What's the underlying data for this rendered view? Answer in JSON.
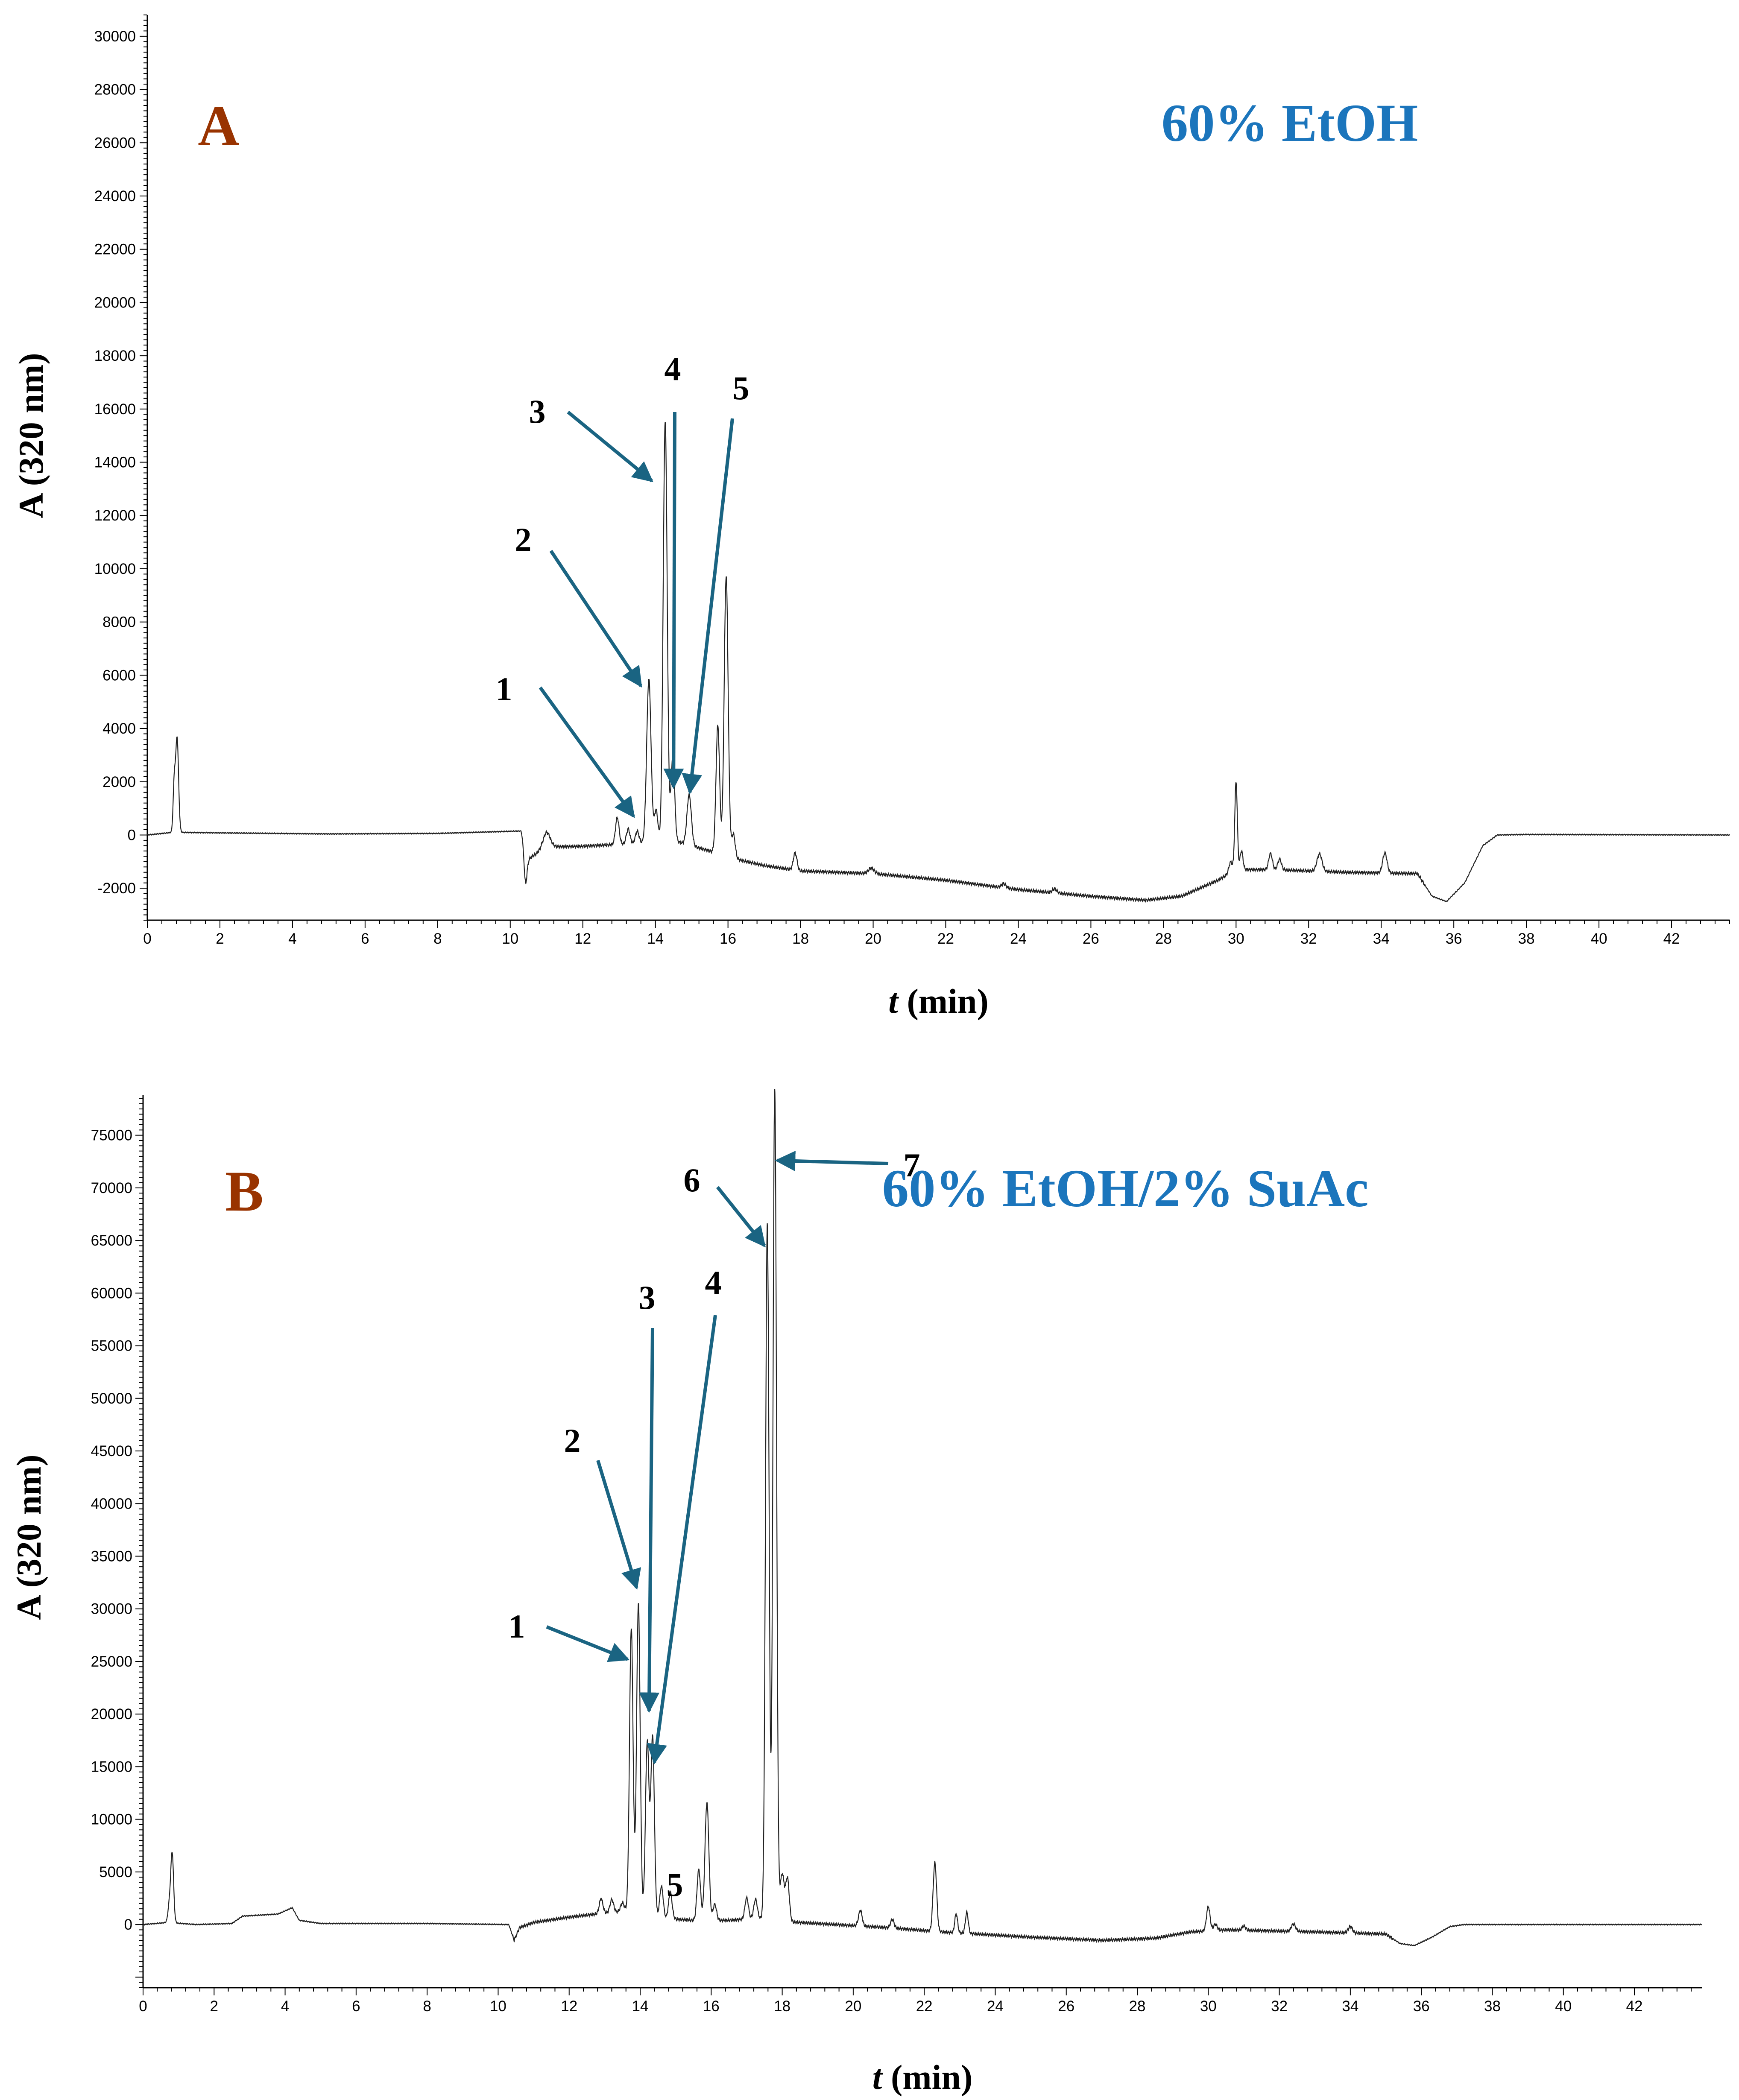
{
  "colors": {
    "letter": "#993300",
    "condition": "#1B75BC",
    "arrow": "#1A6482",
    "trace": "#222222",
    "axis": "#000000"
  },
  "chart_data": [
    {
      "type": "line",
      "panel": "A",
      "condition": "60% EtOH",
      "xlabel_italic": "t",
      "xlabel_rest": " (min)",
      "ylabel": "A (320 nm)",
      "xlim": [
        0,
        43.6
      ],
      "ylim": [
        -3200,
        30800
      ],
      "xticks": [
        0,
        2,
        4,
        6,
        8,
        10,
        12,
        14,
        16,
        18,
        20,
        22,
        24,
        26,
        28,
        30,
        32,
        34,
        36,
        38,
        40,
        42
      ],
      "yticks": [
        -2000,
        0,
        2000,
        4000,
        6000,
        8000,
        10000,
        12000,
        14000,
        16000,
        18000,
        20000,
        22000,
        24000,
        26000,
        28000,
        30000
      ],
      "baseline": [
        [
          0,
          0
        ],
        [
          0.7,
          100
        ],
        [
          2,
          80
        ],
        [
          5,
          40
        ],
        [
          8,
          60
        ],
        [
          10.3,
          150
        ],
        [
          10.5,
          -900
        ],
        [
          11,
          -450
        ],
        [
          12,
          -420
        ],
        [
          13,
          -350
        ],
        [
          13.6,
          -300
        ],
        [
          14.6,
          -250
        ],
        [
          15.5,
          -600
        ],
        [
          16.2,
          -900
        ],
        [
          17,
          -1150
        ],
        [
          18,
          -1350
        ],
        [
          20,
          -1450
        ],
        [
          22,
          -1700
        ],
        [
          24,
          -2050
        ],
        [
          26,
          -2300
        ],
        [
          27.5,
          -2450
        ],
        [
          28.5,
          -2300
        ],
        [
          29.5,
          -1700
        ],
        [
          30,
          -1300
        ],
        [
          31,
          -1300
        ],
        [
          33,
          -1400
        ],
        [
          35,
          -1450
        ],
        [
          35.4,
          -2300
        ],
        [
          35.8,
          -2500
        ],
        [
          36.3,
          -1800
        ],
        [
          36.8,
          -400
        ],
        [
          37.2,
          0
        ],
        [
          38,
          20
        ],
        [
          43.6,
          0
        ]
      ],
      "peaks": [
        [
          0.82,
          3550,
          0.04
        ],
        [
          0.74,
          1750,
          0.03
        ],
        [
          10.42,
          -1300,
          0.04
        ],
        [
          11.0,
          550,
          0.1
        ],
        [
          12.95,
          1000,
          0.05
        ],
        [
          13.25,
          550,
          0.05
        ],
        [
          13.5,
          450,
          0.05
        ],
        [
          13.82,
          6150,
          0.06
        ],
        [
          14.02,
          1200,
          0.05
        ],
        [
          14.27,
          15800,
          0.055
        ],
        [
          14.48,
          3200,
          0.05
        ],
        [
          14.93,
          1900,
          0.06
        ],
        [
          15.72,
          4800,
          0.05
        ],
        [
          15.95,
          10500,
          0.055
        ],
        [
          16.15,
          900,
          0.05
        ],
        [
          17.85,
          650,
          0.05
        ],
        [
          19.95,
          200,
          0.08
        ],
        [
          23.6,
          150,
          0.06
        ],
        [
          25.0,
          150,
          0.06
        ],
        [
          29.85,
          400,
          0.05
        ],
        [
          30.0,
          3300,
          0.035
        ],
        [
          30.15,
          700,
          0.04
        ],
        [
          30.95,
          600,
          0.05
        ],
        [
          31.2,
          400,
          0.05
        ],
        [
          32.3,
          650,
          0.07
        ],
        [
          34.1,
          750,
          0.06
        ]
      ],
      "annotations": [
        {
          "label": "1",
          "at": [
            13.4,
            700
          ]
        },
        {
          "label": "2",
          "at": [
            13.6,
            5600
          ]
        },
        {
          "label": "3",
          "at": [
            13.9,
            13300
          ]
        },
        {
          "label": "4",
          "at": [
            14.5,
            1800
          ]
        },
        {
          "label": "5",
          "at": [
            14.95,
            1600
          ]
        }
      ]
    },
    {
      "type": "line",
      "panel": "B",
      "condition": "60% EtOH/2% SuAc",
      "xlabel_italic": "t",
      "xlabel_rest": " (min)",
      "ylabel": "A (320 nm)",
      "xlim": [
        0,
        43.9
      ],
      "ylim": [
        -6000,
        78800
      ],
      "xticks": [
        0,
        2,
        4,
        6,
        8,
        10,
        12,
        14,
        16,
        18,
        20,
        22,
        24,
        26,
        28,
        30,
        32,
        34,
        36,
        38,
        40,
        42
      ],
      "yticks": [
        0,
        5000,
        10000,
        15000,
        20000,
        25000,
        30000,
        35000,
        40000,
        45000,
        50000,
        55000,
        60000,
        65000,
        70000,
        75000
      ],
      "baseline": [
        [
          0,
          0
        ],
        [
          0.7,
          200
        ],
        [
          1.5,
          0
        ],
        [
          2.5,
          100
        ],
        [
          2.8,
          800
        ],
        [
          3.8,
          1000
        ],
        [
          4.2,
          1600
        ],
        [
          4.4,
          400
        ],
        [
          5,
          100
        ],
        [
          8,
          100
        ],
        [
          10.3,
          0
        ],
        [
          10.45,
          -1500
        ],
        [
          10.6,
          -300
        ],
        [
          11,
          200
        ],
        [
          12,
          700
        ],
        [
          13,
          1100
        ],
        [
          13.6,
          1300
        ],
        [
          14.6,
          600
        ],
        [
          15.5,
          400
        ],
        [
          16.5,
          400
        ],
        [
          17.3,
          600
        ],
        [
          18,
          300
        ],
        [
          19,
          100
        ],
        [
          21,
          -300
        ],
        [
          22.5,
          -700
        ],
        [
          24,
          -1000
        ],
        [
          25,
          -1200
        ],
        [
          27,
          -1500
        ],
        [
          28.5,
          -1300
        ],
        [
          29.5,
          -700
        ],
        [
          30.5,
          -500
        ],
        [
          33,
          -700
        ],
        [
          35,
          -900
        ],
        [
          35.4,
          -1800
        ],
        [
          35.8,
          -2000
        ],
        [
          36.3,
          -1200
        ],
        [
          36.8,
          -200
        ],
        [
          37.2,
          0
        ],
        [
          43.9,
          0
        ]
      ],
      "peaks": [
        [
          0.82,
          6500,
          0.04
        ],
        [
          0.74,
          1600,
          0.04
        ],
        [
          12.9,
          1400,
          0.05
        ],
        [
          13.2,
          1200,
          0.05
        ],
        [
          13.5,
          800,
          0.05
        ],
        [
          13.75,
          27000,
          0.05
        ],
        [
          13.95,
          29500,
          0.05
        ],
        [
          14.2,
          16500,
          0.05
        ],
        [
          14.35,
          17000,
          0.05
        ],
        [
          14.6,
          3000,
          0.05
        ],
        [
          14.85,
          2500,
          0.05
        ],
        [
          15.65,
          4800,
          0.05
        ],
        [
          15.88,
          11200,
          0.055
        ],
        [
          16.1,
          1500,
          0.05
        ],
        [
          17.0,
          2000,
          0.05
        ],
        [
          17.25,
          1800,
          0.05
        ],
        [
          17.58,
          66000,
          0.05
        ],
        [
          17.79,
          79000,
          0.05
        ],
        [
          18.0,
          4500,
          0.06
        ],
        [
          18.15,
          4000,
          0.05
        ],
        [
          20.2,
          1500,
          0.05
        ],
        [
          21.1,
          800,
          0.05
        ],
        [
          22.3,
          6500,
          0.05
        ],
        [
          22.9,
          1800,
          0.04
        ],
        [
          23.2,
          2000,
          0.04
        ],
        [
          30.0,
          2300,
          0.05
        ],
        [
          30.2,
          600,
          0.05
        ],
        [
          31.0,
          400,
          0.05
        ],
        [
          32.4,
          700,
          0.06
        ],
        [
          34.0,
          600,
          0.06
        ]
      ],
      "annotations": [
        {
          "label": "1",
          "at": [
            13.65,
            25200
          ]
        },
        {
          "label": "2",
          "at": [
            13.9,
            32000
          ]
        },
        {
          "label": "3",
          "at": [
            14.25,
            20300
          ]
        },
        {
          "label": "4",
          "at": [
            14.4,
            15400
          ]
        },
        {
          "label": "5",
          "at": [
            14.75,
            5500
          ]
        },
        {
          "label": "6",
          "at": [
            17.5,
            64500
          ]
        },
        {
          "label": "7",
          "at": [
            17.85,
            72600
          ]
        }
      ]
    }
  ]
}
